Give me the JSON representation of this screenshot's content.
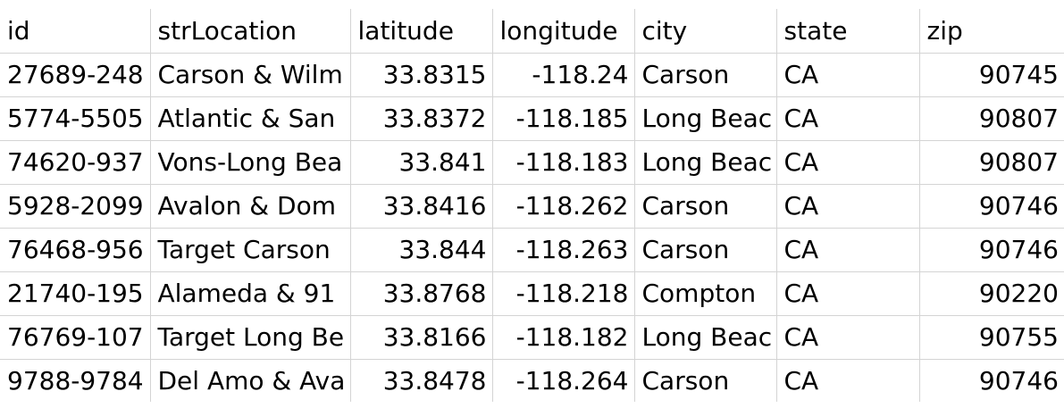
{
  "columns": [
    "id",
    "strLocation",
    "latitude",
    "longitude",
    "city",
    "state",
    "zip"
  ],
  "rows": [
    [
      "27689-248",
      "Carson & Wilm",
      "33.8315",
      "-118.24",
      "Carson",
      "CA",
      "90745"
    ],
    [
      "5774-5505",
      "Atlantic & San",
      "33.8372",
      "-118.185",
      "Long Beac",
      "CA",
      "90807"
    ],
    [
      "74620-937",
      "Vons-Long Bea",
      "33.841",
      "-118.183",
      "Long Beac",
      "CA",
      "90807"
    ],
    [
      "5928-2099",
      "Avalon & Dom",
      "33.8416",
      "-118.262",
      "Carson",
      "CA",
      "90746"
    ],
    [
      "76468-956",
      "Target Carson",
      "33.844",
      "-118.263",
      "Carson",
      "CA",
      "90746"
    ],
    [
      "21740-195",
      "Alameda & 91",
      "33.8768",
      "-118.218",
      "Compton",
      "CA",
      "90220"
    ],
    [
      "76769-107",
      "Target Long Be",
      "33.8166",
      "-118.182",
      "Long Beac",
      "CA",
      "90755"
    ],
    [
      "9788-9784",
      "Del Amo & Ava",
      "33.8478",
      "-118.264",
      "Carson",
      "CA",
      "90746"
    ]
  ]
}
